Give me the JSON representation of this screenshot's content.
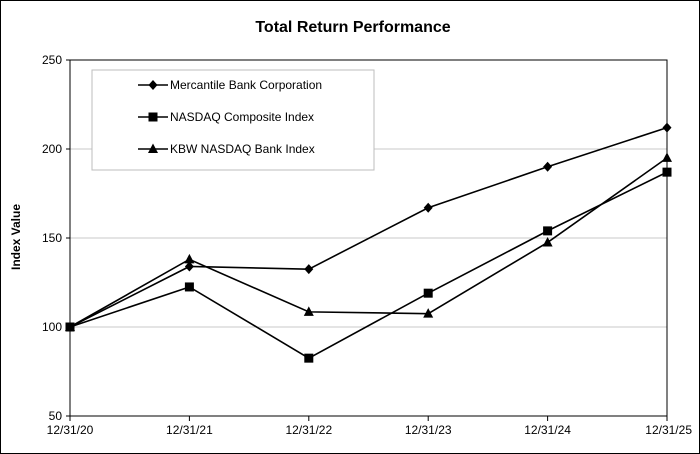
{
  "chart_data": {
    "type": "line",
    "title": "Total Return Performance",
    "xlabel": "",
    "ylabel": "Index Value",
    "categories": [
      "12/31/20",
      "12/31/21",
      "12/31/22",
      "12/31/23",
      "12/31/24",
      "12/31/25"
    ],
    "ylim": [
      50,
      250
    ],
    "yticks": [
      50,
      100,
      150,
      200,
      250
    ],
    "grid": true,
    "legend_position": "top-left",
    "series": [
      {
        "name": "Mercantile Bank Corporation",
        "marker": "diamond",
        "values": [
          100,
          134,
          132.5,
          167,
          190,
          212
        ]
      },
      {
        "name": "NASDAQ Composite Index",
        "marker": "square",
        "values": [
          100,
          122.5,
          82.5,
          119,
          154,
          187
        ]
      },
      {
        "name": "KBW NASDAQ Bank Index",
        "marker": "triangle",
        "values": [
          100,
          138,
          108.5,
          107.5,
          147.5,
          195
        ]
      }
    ]
  }
}
